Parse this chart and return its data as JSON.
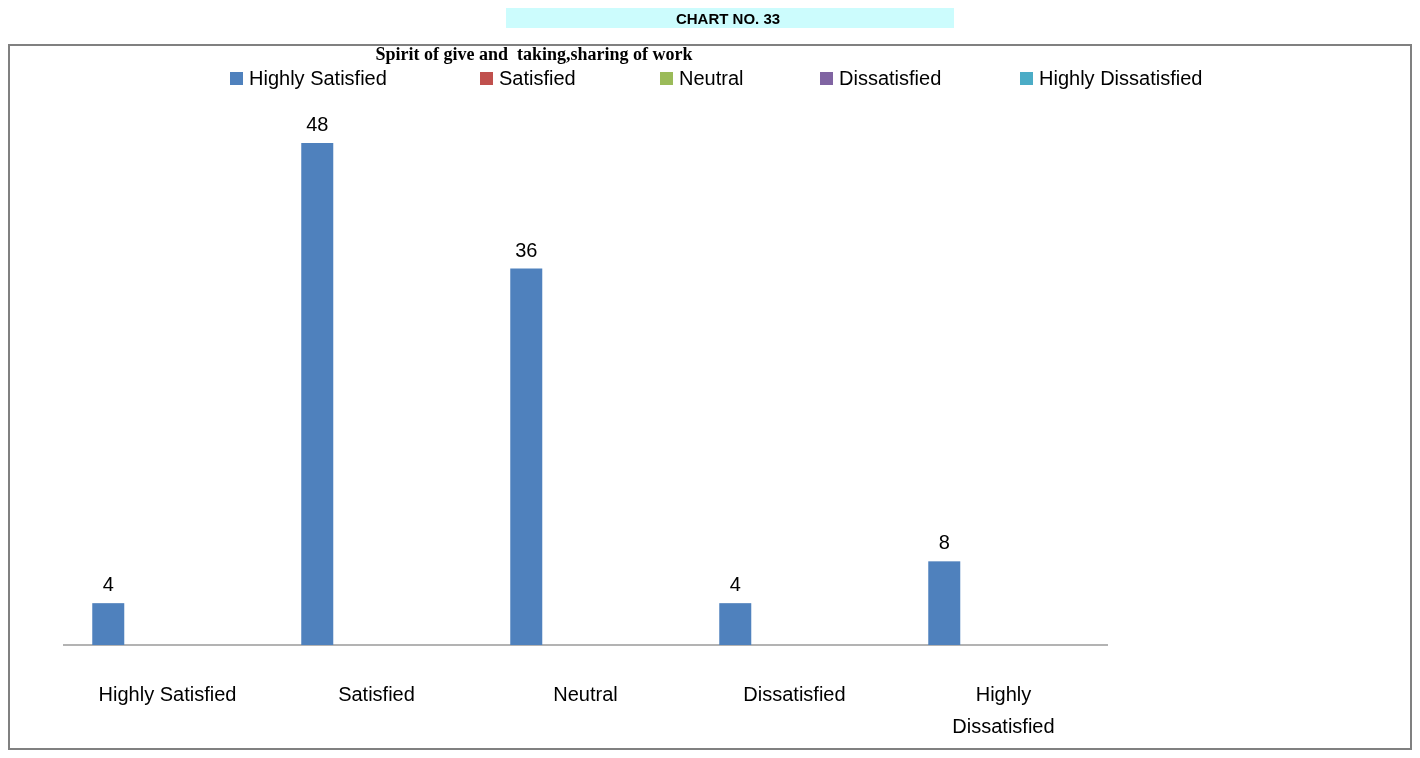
{
  "chart_data": {
    "type": "bar",
    "title": "Spirit of give and  taking,sharing of work",
    "annotations": [
      "CHART NO. 33"
    ],
    "categories": [
      "Highly Satisfied",
      "Satisfied",
      "Neutral",
      "Dissatisfied",
      "Highly Dissatisfied"
    ],
    "series": [
      {
        "name": "Highly Satisfied",
        "color": "#4f81bd",
        "values": [
          4,
          48,
          36,
          4,
          8
        ]
      },
      {
        "name": "Satisfied",
        "color": "#c0504d",
        "values": [
          null,
          null,
          null,
          null,
          null
        ]
      },
      {
        "name": "Neutral",
        "color": "#9bbb59",
        "values": [
          null,
          null,
          null,
          null,
          null
        ]
      },
      {
        "name": "Dissatisfied",
        "color": "#8064a2",
        "values": [
          null,
          null,
          null,
          null,
          null
        ]
      },
      {
        "name": "Highly Dissatisfied",
        "color": "#4bacc6",
        "values": [
          null,
          null,
          null,
          null,
          null
        ]
      }
    ],
    "data_labels": true,
    "legend": "top"
  }
}
